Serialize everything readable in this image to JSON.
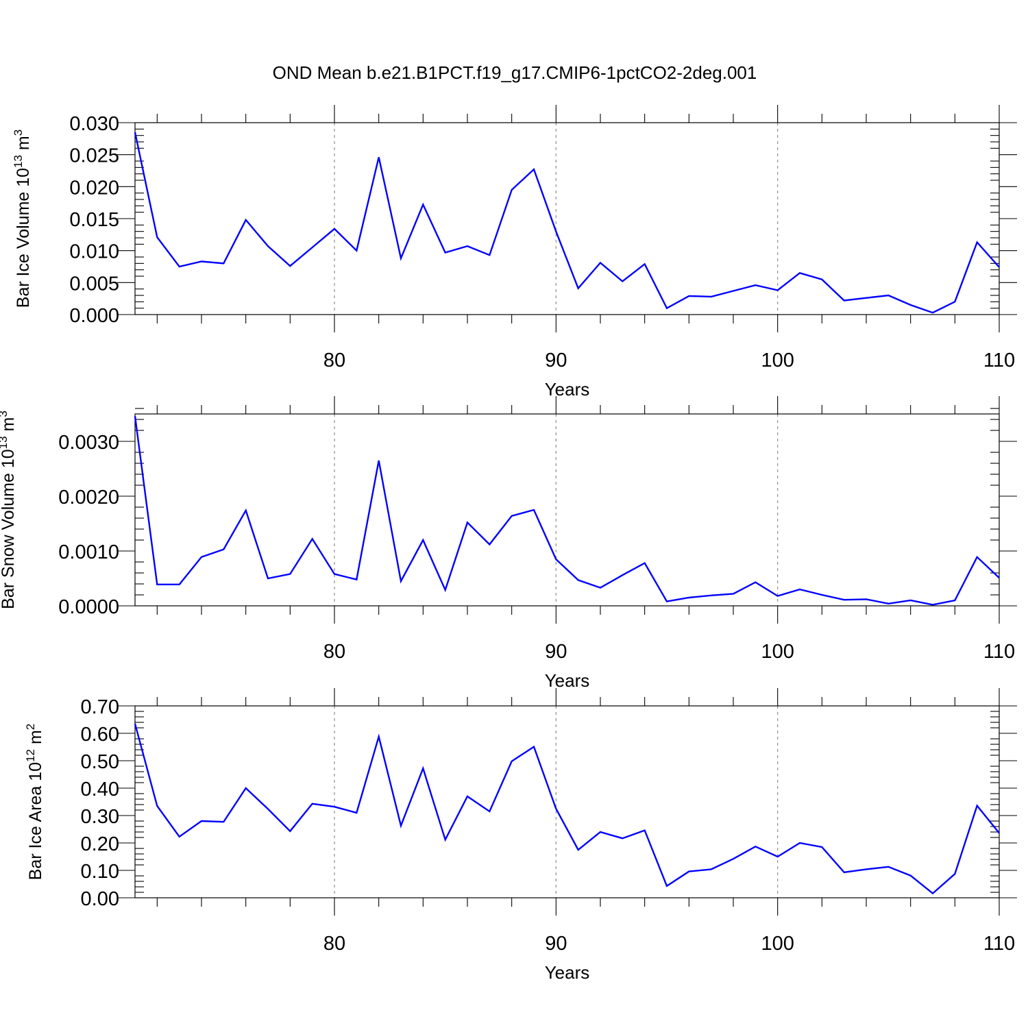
{
  "title": "OND Mean b.e21.B1PCT.f19_g17.CMIP6-1pctCO2-2deg.001",
  "chart_data": [
    {
      "type": "line",
      "ylabel": "Bar Ice Volume 10",
      "ylabel_exp": "13",
      "ylabel_unit": "m",
      "ylabel_unit_exp": "3",
      "xlabel": "Years",
      "xlim": [
        71,
        110
      ],
      "ylim": [
        0,
        0.03
      ],
      "grid": "vertical dashed at major x ticks",
      "color": "#0000ff",
      "xticks": [
        80,
        90,
        100,
        110
      ],
      "xtick_labels": [
        "80",
        "90",
        "100",
        "110"
      ],
      "yticks": [
        0,
        0.005,
        0.01,
        0.015,
        0.02,
        0.025,
        0.03
      ],
      "ytick_labels": [
        "0.000",
        "0.005",
        "0.010",
        "0.015",
        "0.020",
        "0.025",
        "0.030"
      ],
      "x": [
        71,
        72,
        73,
        74,
        75,
        76,
        77,
        78,
        79,
        80,
        81,
        82,
        83,
        84,
        85,
        86,
        87,
        88,
        89,
        90,
        91,
        92,
        93,
        94,
        95,
        96,
        97,
        98,
        99,
        100,
        101,
        102,
        103,
        104,
        105,
        106,
        107,
        108,
        109,
        110
      ],
      "values": [
        0.0285,
        0.0121,
        0.0075,
        0.0083,
        0.008,
        0.0148,
        0.0107,
        0.0076,
        0.0105,
        0.0134,
        0.01,
        0.0246,
        0.0088,
        0.0172,
        0.0097,
        0.0107,
        0.0093,
        0.0195,
        0.0227,
        0.013,
        0.0041,
        0.0081,
        0.0052,
        0.0079,
        0.001,
        0.0029,
        0.0028,
        0.0037,
        0.0046,
        0.0038,
        0.0065,
        0.0055,
        0.0022,
        0.0026,
        0.003,
        0.0015,
        0.0003,
        0.002,
        0.0113,
        0.0074
      ]
    },
    {
      "type": "line",
      "ylabel": "Bar Snow Volume 10",
      "ylabel_exp": "13",
      "ylabel_unit": "m",
      "ylabel_unit_exp": "3",
      "xlabel": "Years",
      "xlim": [
        71,
        110
      ],
      "ylim": [
        0,
        0.0035
      ],
      "grid": "vertical dashed at major x ticks",
      "color": "#0000ff",
      "xticks": [
        80,
        90,
        100,
        110
      ],
      "xtick_labels": [
        "80",
        "90",
        "100",
        "110"
      ],
      "yticks": [
        0,
        0.001,
        0.002,
        0.003
      ],
      "ytick_labels": [
        "0.0000",
        "0.0010",
        "0.0020",
        "0.0030"
      ],
      "x": [
        71,
        72,
        73,
        74,
        75,
        76,
        77,
        78,
        79,
        80,
        81,
        82,
        83,
        84,
        85,
        86,
        87,
        88,
        89,
        90,
        91,
        92,
        93,
        94,
        95,
        96,
        97,
        98,
        99,
        100,
        101,
        102,
        103,
        104,
        105,
        106,
        107,
        108,
        109,
        110
      ],
      "values": [
        0.00346,
        0.00039,
        0.00039,
        0.00089,
        0.00103,
        0.00174,
        0.0005,
        0.00058,
        0.00122,
        0.00058,
        0.00048,
        0.00265,
        0.00045,
        0.0012,
        0.00029,
        0.00152,
        0.00112,
        0.00164,
        0.00175,
        0.00085,
        0.00047,
        0.00033,
        0.00056,
        0.00078,
        8e-05,
        0.00015,
        0.00019,
        0.00022,
        0.00043,
        0.00018,
        0.0003,
        0.0002,
        0.00011,
        0.00012,
        4e-05,
        0.0001,
        2e-05,
        0.0001,
        0.00089,
        0.00051
      ]
    },
    {
      "type": "line",
      "ylabel": "Bar Ice Area 10",
      "ylabel_exp": "12",
      "ylabel_unit": "m",
      "ylabel_unit_exp": "2",
      "xlabel": "Years",
      "xlim": [
        71,
        110
      ],
      "ylim": [
        0,
        0.7
      ],
      "grid": "vertical dashed at major x ticks",
      "color": "#0000ff",
      "xticks": [
        80,
        90,
        100,
        110
      ],
      "xtick_labels": [
        "80",
        "90",
        "100",
        "110"
      ],
      "yticks": [
        0,
        0.1,
        0.2,
        0.3,
        0.4,
        0.5,
        0.6,
        0.7
      ],
      "ytick_labels": [
        "0.00",
        "0.10",
        "0.20",
        "0.30",
        "0.40",
        "0.50",
        "0.60",
        "0.70"
      ],
      "x": [
        71,
        72,
        73,
        74,
        75,
        76,
        77,
        78,
        79,
        80,
        81,
        82,
        83,
        84,
        85,
        86,
        87,
        88,
        89,
        90,
        91,
        92,
        93,
        94,
        95,
        96,
        97,
        98,
        99,
        100,
        101,
        102,
        103,
        104,
        105,
        106,
        107,
        108,
        109,
        110
      ],
      "values": [
        0.635,
        0.335,
        0.223,
        0.28,
        0.277,
        0.4,
        0.324,
        0.243,
        0.343,
        0.332,
        0.31,
        0.588,
        0.263,
        0.472,
        0.212,
        0.37,
        0.315,
        0.498,
        0.551,
        0.325,
        0.175,
        0.24,
        0.217,
        0.246,
        0.043,
        0.096,
        0.104,
        0.142,
        0.187,
        0.15,
        0.2,
        0.185,
        0.093,
        0.104,
        0.113,
        0.081,
        0.016,
        0.087,
        0.336,
        0.236
      ]
    }
  ]
}
